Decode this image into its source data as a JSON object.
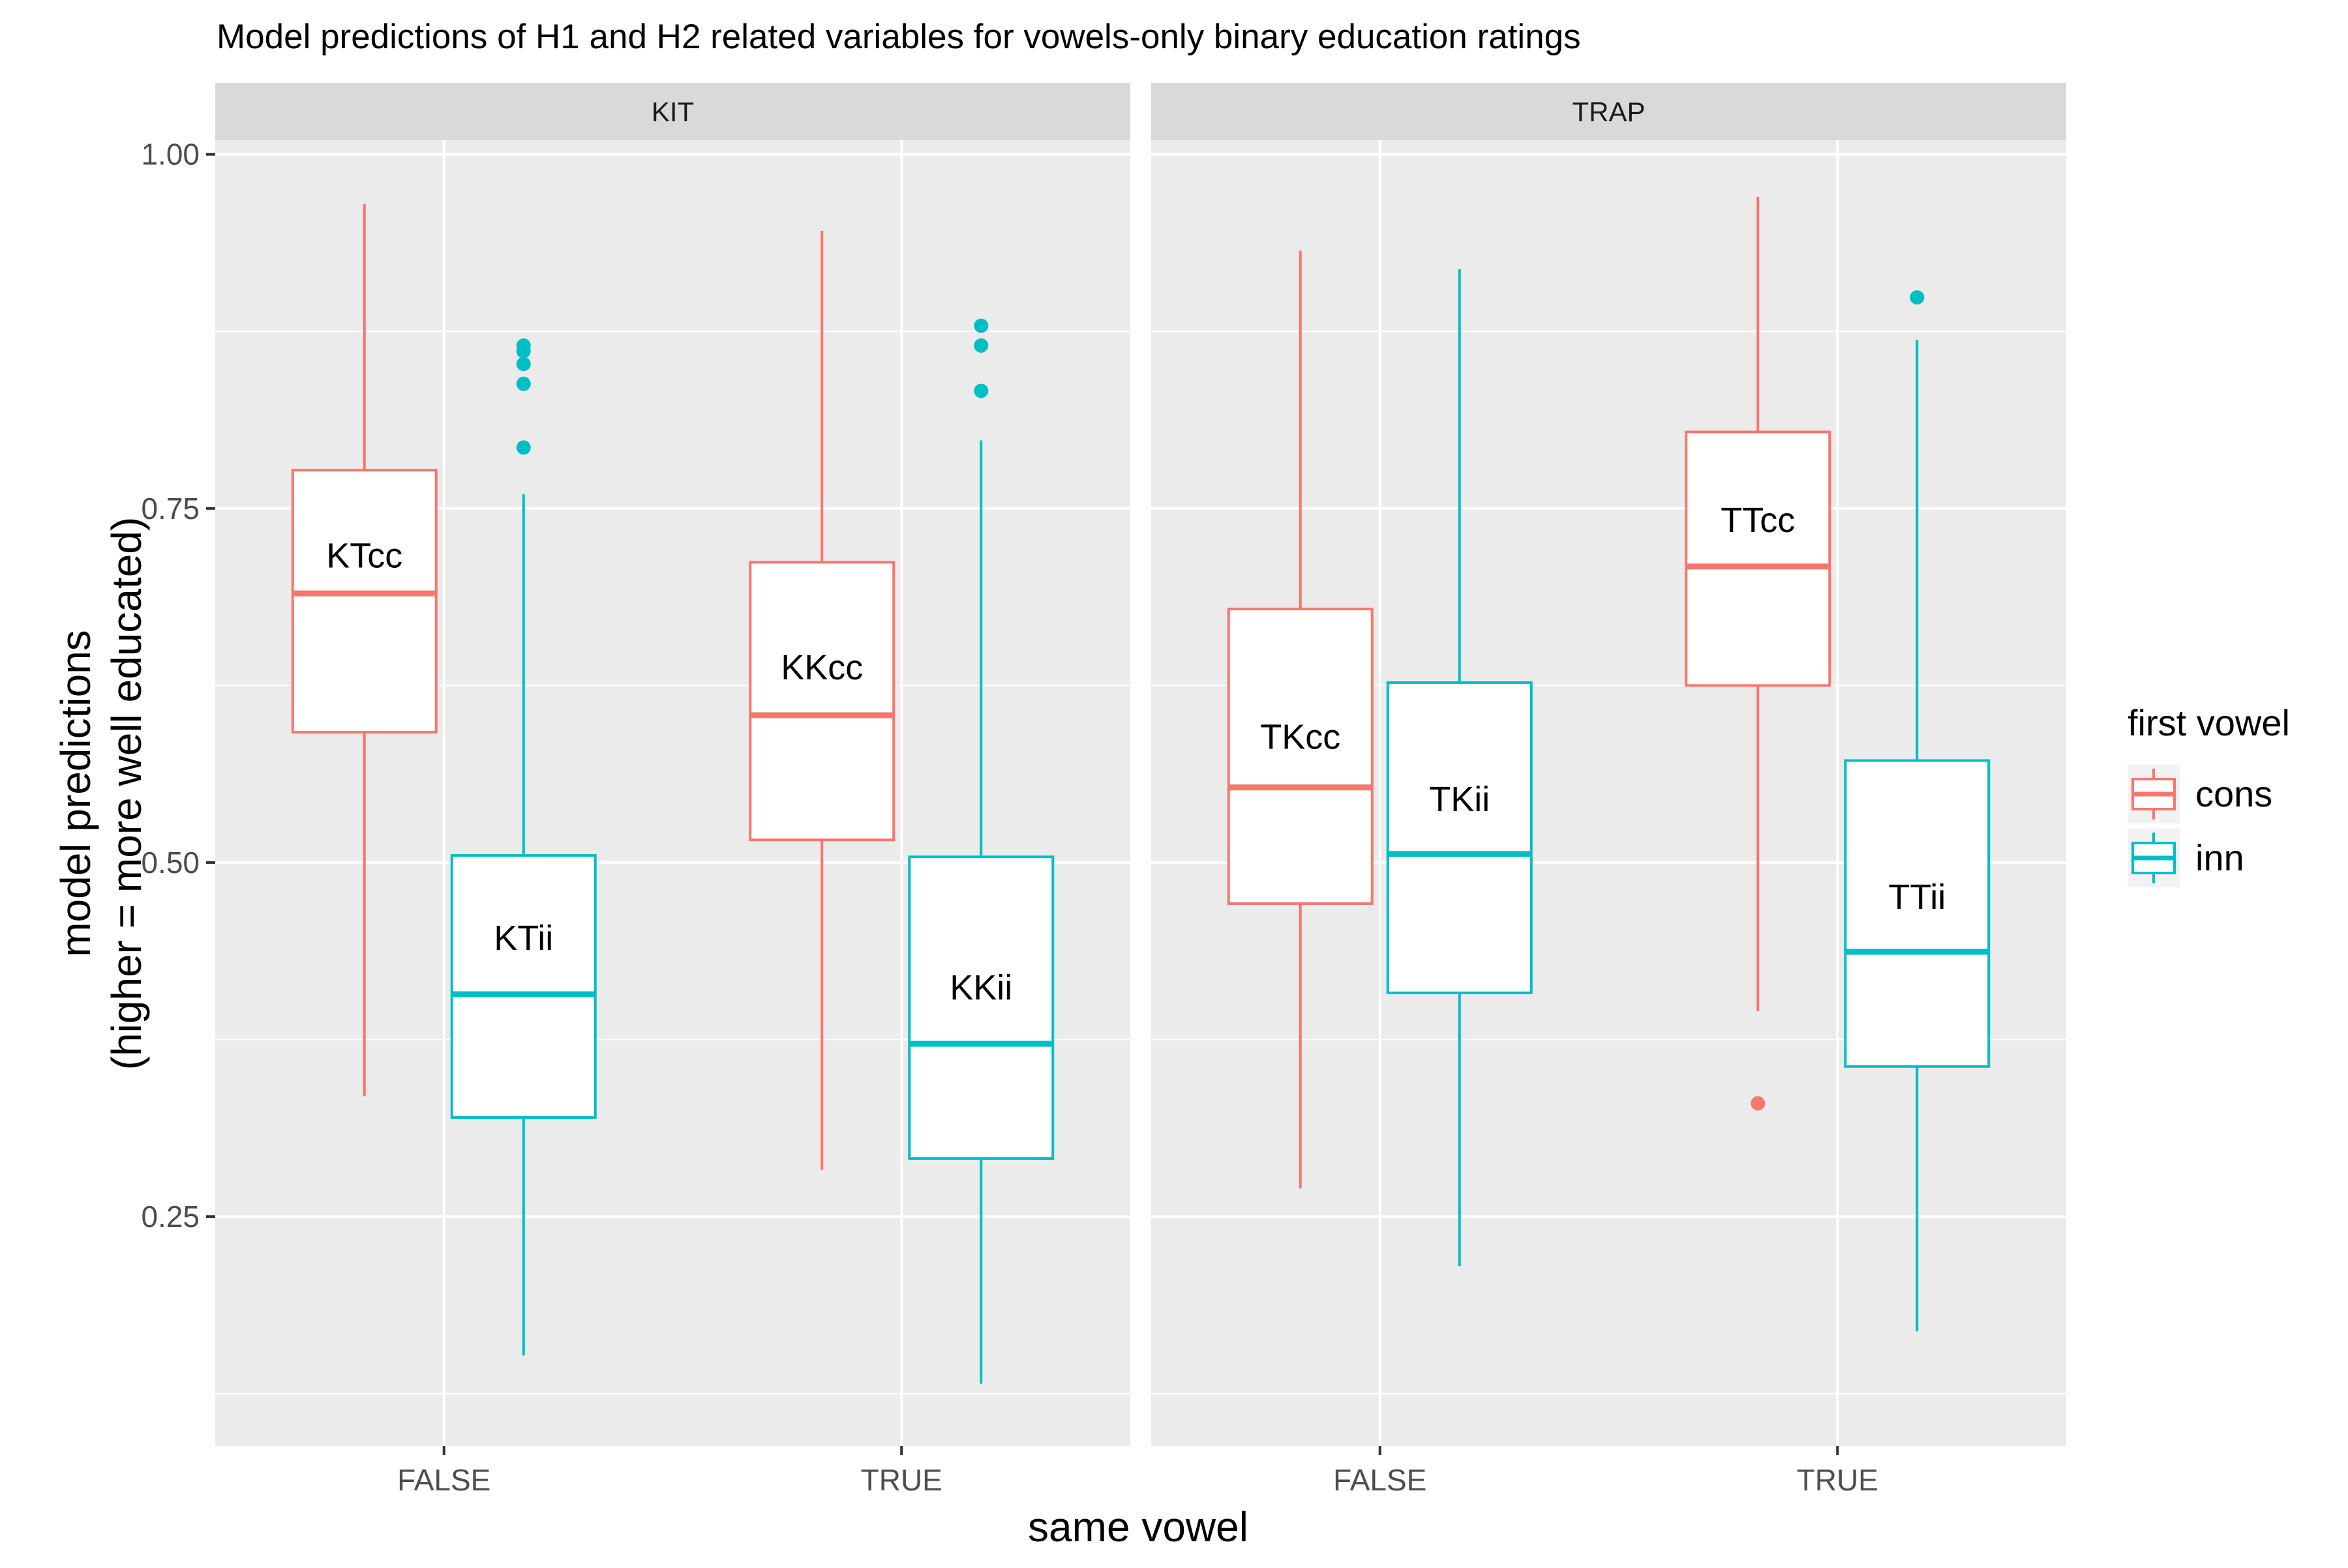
{
  "chart_data": {
    "type": "boxplot",
    "title": "Model predictions of H1 and H2 related variables for vowels-only binary education ratings",
    "xlabel": "same vowel",
    "ylabel_line1": "model predictions",
    "ylabel_line2": "(higher = more well educated)",
    "ylim": [
      0.088,
      1.01
    ],
    "yticks": [
      {
        "value": 0.25,
        "label": "0.25"
      },
      {
        "value": 0.5,
        "label": "0.50"
      },
      {
        "value": 0.75,
        "label": "0.75"
      },
      {
        "value": 1.0,
        "label": "1.00"
      }
    ],
    "categories": [
      "FALSE",
      "TRUE"
    ],
    "legend": {
      "title": "first vowel",
      "position": "right",
      "entries": [
        {
          "name": "cons",
          "color": "#F8766D"
        },
        {
          "name": "inn",
          "color": "#00BFC4"
        }
      ]
    },
    "panels": [
      {
        "name": "KIT",
        "boxes": [
          {
            "category": "FALSE",
            "group": "cons",
            "label": "KTcc",
            "label_y": 0.717,
            "whisker_low": 0.335,
            "q1": 0.592,
            "median": 0.69,
            "q3": 0.777,
            "whisker_high": 0.965,
            "outliers": []
          },
          {
            "category": "FALSE",
            "group": "inn",
            "label": "KTii",
            "label_y": 0.447,
            "whisker_low": 0.152,
            "q1": 0.32,
            "median": 0.407,
            "q3": 0.505,
            "whisker_high": 0.76,
            "outliers": [
              0.793,
              0.838,
              0.852,
              0.861,
              0.865
            ]
          },
          {
            "category": "TRUE",
            "group": "cons",
            "label": "KKcc",
            "label_y": 0.638,
            "whisker_low": 0.283,
            "q1": 0.516,
            "median": 0.604,
            "q3": 0.712,
            "whisker_high": 0.946,
            "outliers": []
          },
          {
            "category": "TRUE",
            "group": "inn",
            "label": "KKii",
            "label_y": 0.412,
            "whisker_low": 0.132,
            "q1": 0.291,
            "median": 0.372,
            "q3": 0.504,
            "whisker_high": 0.798,
            "outliers": [
              0.833,
              0.865,
              0.879
            ]
          }
        ]
      },
      {
        "name": "TRAP",
        "boxes": [
          {
            "category": "FALSE",
            "group": "cons",
            "label": "TKcc",
            "label_y": 0.589,
            "whisker_low": 0.27,
            "q1": 0.471,
            "median": 0.553,
            "q3": 0.679,
            "whisker_high": 0.932,
            "outliers": []
          },
          {
            "category": "FALSE",
            "group": "inn",
            "label": "TKii",
            "label_y": 0.545,
            "whisker_low": 0.215,
            "q1": 0.408,
            "median": 0.506,
            "q3": 0.627,
            "whisker_high": 0.919,
            "outliers": []
          },
          {
            "category": "TRUE",
            "group": "cons",
            "label": "TTcc",
            "label_y": 0.742,
            "whisker_low": 0.395,
            "q1": 0.625,
            "median": 0.709,
            "q3": 0.804,
            "whisker_high": 0.97,
            "outliers": [
              0.33
            ]
          },
          {
            "category": "TRUE",
            "group": "inn",
            "label": "TTii",
            "label_y": 0.476,
            "whisker_low": 0.169,
            "q1": 0.356,
            "median": 0.437,
            "q3": 0.572,
            "whisker_high": 0.869,
            "outliers": [
              0.899
            ]
          }
        ]
      }
    ]
  }
}
